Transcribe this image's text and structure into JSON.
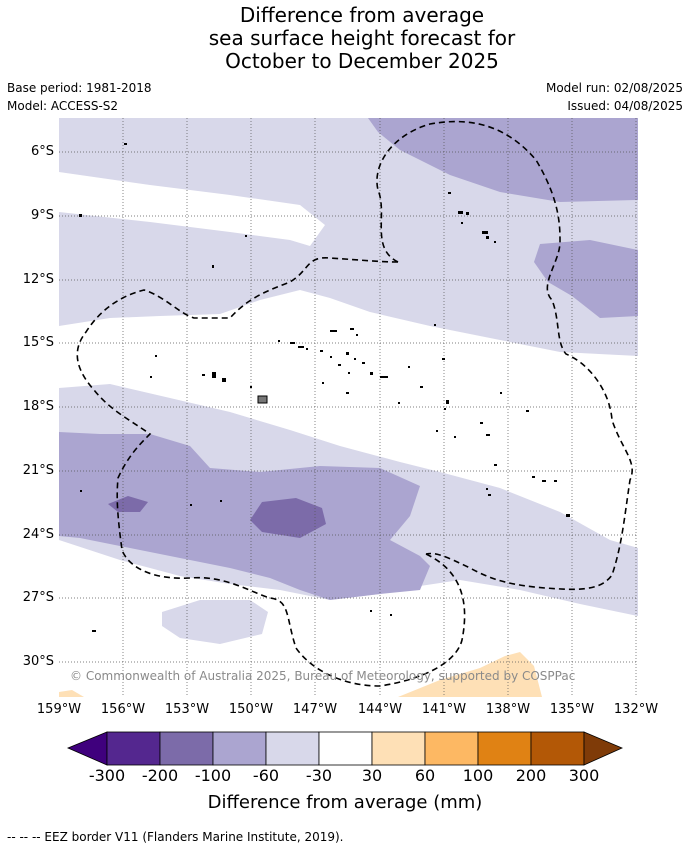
{
  "title_lines": [
    "Difference from average",
    "sea surface height forecast for",
    "October to December 2025"
  ],
  "meta": {
    "base_period": "Base period: 1981-2018",
    "model": "Model: ACCESS-S2",
    "model_run": "Model run: 02/08/2025",
    "issued": "Issued: 04/08/2025"
  },
  "map": {
    "lon_range": [
      -159,
      -132
    ],
    "lat_range": [
      -31.5,
      -4.5
    ],
    "lat_ticks": [
      "6°S",
      "9°S",
      "12°S",
      "15°S",
      "18°S",
      "21°S",
      "24°S",
      "27°S",
      "30°S"
    ],
    "lon_ticks": [
      "159°W",
      "156°W",
      "153°W",
      "150°W",
      "147°W",
      "144°W",
      "141°W",
      "138°W",
      "135°W",
      "132°W"
    ],
    "copyright": "© Commonwealth of Australia 2025, Bureau of Meteorology, supported by COSPPac",
    "land_color": "#000000",
    "eez_style": "dashed"
  },
  "colorbar": {
    "ticks": [
      "-300",
      "-200",
      "-100",
      "-60",
      "-30",
      "30",
      "60",
      "100",
      "200",
      "300"
    ],
    "colors": [
      "#3f007d",
      "#54278f",
      "#7c6ba9",
      "#aba5d0",
      "#d8d8ea",
      "#ffffff",
      "#fee0b6",
      "#fdb863",
      "#e08214",
      "#b35806",
      "#7f3b08"
    ],
    "title": "Difference from average (mm)"
  },
  "footnote": "--  --  -- EEZ border V11 (Flanders Marine Institute, 2019)."
}
